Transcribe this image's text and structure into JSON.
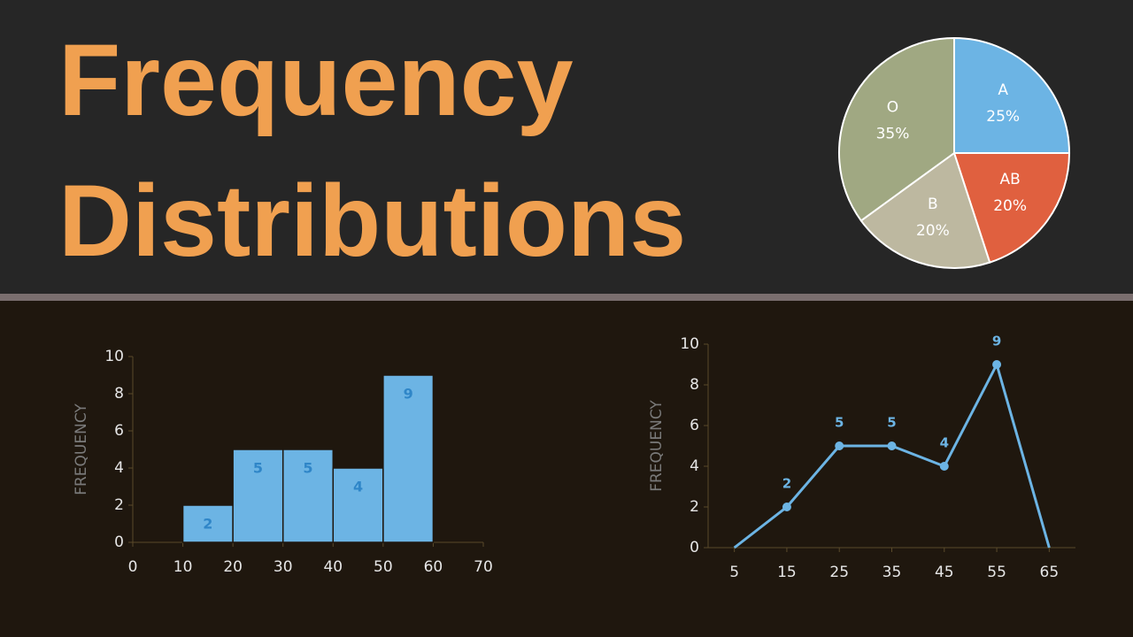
{
  "header": {
    "title": "Frequency Distributions"
  },
  "chart_data": [
    {
      "type": "pie",
      "categories": [
        "A",
        "AB",
        "B",
        "O"
      ],
      "values": [
        25,
        20,
        20,
        35
      ],
      "value_labels": [
        "25%",
        "20%",
        "20%",
        "35%"
      ],
      "colors": [
        "#6cb4e4",
        "#e0603f",
        "#bdb8a0",
        "#a0a882"
      ]
    },
    {
      "type": "histogram",
      "ylabel": "FREQUENCY",
      "bins": [
        10,
        20,
        30,
        40,
        50,
        60
      ],
      "values": [
        2,
        5,
        5,
        4,
        9
      ],
      "color": "#6cb4e4",
      "xlim": [
        0,
        70
      ],
      "xticks": [
        0,
        10,
        20,
        30,
        40,
        50,
        60,
        70
      ],
      "ylim": [
        0,
        10
      ],
      "yticks": [
        0,
        2,
        4,
        6,
        8,
        10
      ]
    },
    {
      "type": "line",
      "ylabel": "FREQUENCY",
      "x": [
        5,
        15,
        25,
        35,
        45,
        55,
        65
      ],
      "values": [
        0,
        2,
        5,
        5,
        4,
        9,
        0
      ],
      "value_labels": [
        null,
        "2",
        "5",
        "5",
        "4",
        "9",
        null
      ],
      "color": "#6cb4e4",
      "xlim": [
        0,
        70
      ],
      "xticks": [
        5,
        15,
        25,
        35,
        45,
        55,
        65
      ],
      "ylim": [
        0,
        10
      ],
      "yticks": [
        0,
        2,
        4,
        6,
        8,
        10
      ]
    }
  ]
}
